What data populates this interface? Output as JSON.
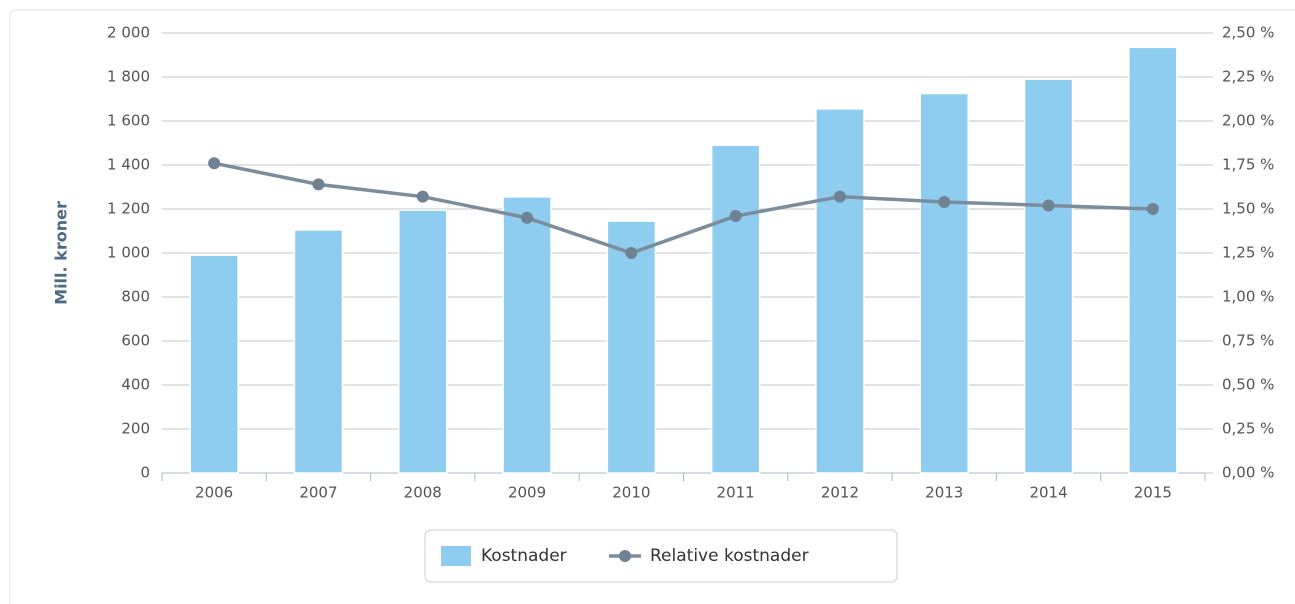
{
  "chart_data": {
    "type": "bar+line",
    "y_axis_label": "Mill. kroner",
    "categories": [
      "2006",
      "2007",
      "2008",
      "2009",
      "2010",
      "2011",
      "2012",
      "2013",
      "2014",
      "2015"
    ],
    "series": [
      {
        "name": "Kostnader",
        "type": "bar",
        "color": "#8ecdf0",
        "values": [
          990,
          1105,
          1195,
          1255,
          1145,
          1490,
          1655,
          1725,
          1790,
          1935
        ]
      },
      {
        "name": "Relative kostnader",
        "type": "line",
        "axis": "y2",
        "color": "#7b8c9c",
        "values": [
          1.76,
          1.64,
          1.57,
          1.45,
          1.25,
          1.46,
          1.57,
          1.54,
          1.52,
          1.5
        ]
      }
    ],
    "ylim": [
      0,
      2000
    ],
    "yticks": [
      0,
      200,
      400,
      600,
      800,
      {
        "value": 1000,
        "label": "1 000"
      },
      {
        "value": 1200,
        "label": "1 200"
      },
      {
        "value": 1400,
        "label": "1 400"
      },
      {
        "value": 1600,
        "label": "1 600"
      },
      {
        "value": 1800,
        "label": "1 800"
      },
      {
        "value": 2000,
        "label": "2 000"
      }
    ],
    "y2lim": [
      0,
      2.5
    ],
    "y2ticks": [
      {
        "value": 0,
        "label": "0,00 %"
      },
      {
        "value": 0.25,
        "label": "0,25 %"
      },
      {
        "value": 0.5,
        "label": "0,50 %"
      },
      {
        "value": 0.75,
        "label": "0,75 %"
      },
      {
        "value": 1,
        "label": "1,00 %"
      },
      {
        "value": 1.25,
        "label": "1,25 %"
      },
      {
        "value": 1.5,
        "label": "1,50 %"
      },
      {
        "value": 1.75,
        "label": "1,75 %"
      },
      {
        "value": 2,
        "label": "2,00 %"
      },
      {
        "value": 2.25,
        "label": "2,25 %"
      },
      {
        "value": 2.5,
        "label": "2,50 %"
      }
    ],
    "grid": true,
    "legend": "bottom"
  }
}
